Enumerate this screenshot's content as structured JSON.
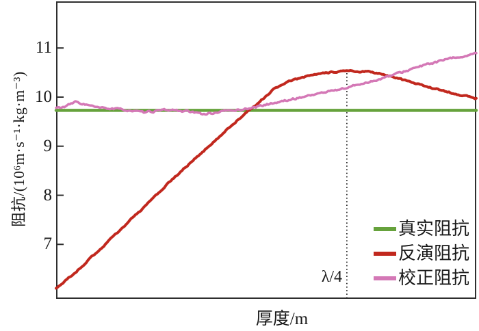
{
  "figure": {
    "background": "#ffffff",
    "axis_color": "#2e2e2e",
    "text_color": "#1a1a1a"
  },
  "chart_data": {
    "type": "line",
    "title": "",
    "xlabel": "厚度/m",
    "ylabel": "阻抗/(10⁶m·s⁻¹·kg·m⁻³)",
    "yticks": [
      7,
      8,
      9,
      10,
      11
    ],
    "ylim": [
      5.89,
      11.95
    ],
    "xlim_normalized": [
      0,
      1
    ],
    "x_tick_labels_visible": false,
    "grid": false,
    "legend_position": "bottom-right",
    "annotation": {
      "label": "λ/4",
      "x": 0.692,
      "type": "vertical-dotted-line",
      "line_color": "#111111",
      "y_top_value": 10.56
    },
    "series": [
      {
        "name": "真实阻抗",
        "color": "#66a23c",
        "width": 4.5,
        "noise": 0,
        "points": [
          [
            0,
            9.73
          ],
          [
            1,
            9.73
          ]
        ]
      },
      {
        "name": "反演阻抗",
        "color": "#c1281e",
        "width": 4,
        "noise": 0.012,
        "points": [
          [
            0,
            6.1
          ],
          [
            0.05,
            6.46
          ],
          [
            0.108,
            6.93
          ],
          [
            0.16,
            7.36
          ],
          [
            0.217,
            7.82
          ],
          [
            0.27,
            8.27
          ],
          [
            0.326,
            8.71
          ],
          [
            0.38,
            9.13
          ],
          [
            0.434,
            9.55
          ],
          [
            0.47,
            9.8
          ],
          [
            0.518,
            10.16
          ],
          [
            0.55,
            10.3
          ],
          [
            0.583,
            10.4
          ],
          [
            0.62,
            10.46
          ],
          [
            0.66,
            10.51
          ],
          [
            0.7,
            10.53
          ],
          [
            0.74,
            10.52
          ],
          [
            0.77,
            10.48
          ],
          [
            0.795,
            10.43
          ],
          [
            0.845,
            10.3
          ],
          [
            0.89,
            10.2
          ],
          [
            0.927,
            10.12
          ],
          [
            0.96,
            10.05
          ],
          [
            1,
            9.97
          ]
        ]
      },
      {
        "name": "校正阻抗",
        "color": "#d478b6",
        "width": 3.5,
        "noise": 0.016,
        "points": [
          [
            0,
            9.78
          ],
          [
            0.02,
            9.8
          ],
          [
            0.046,
            9.9
          ],
          [
            0.07,
            9.85
          ],
          [
            0.1,
            9.78
          ],
          [
            0.14,
            9.76
          ],
          [
            0.175,
            9.73
          ],
          [
            0.209,
            9.68
          ],
          [
            0.24,
            9.72
          ],
          [
            0.274,
            9.74
          ],
          [
            0.31,
            9.71
          ],
          [
            0.345,
            9.66
          ],
          [
            0.372,
            9.67
          ],
          [
            0.4,
            9.72
          ],
          [
            0.437,
            9.74
          ],
          [
            0.47,
            9.79
          ],
          [
            0.518,
            9.88
          ],
          [
            0.56,
            9.95
          ],
          [
            0.6,
            10.03
          ],
          [
            0.64,
            10.1
          ],
          [
            0.692,
            10.19
          ],
          [
            0.73,
            10.28
          ],
          [
            0.755,
            10.33
          ],
          [
            0.795,
            10.43
          ],
          [
            0.845,
            10.57
          ],
          [
            0.89,
            10.68
          ],
          [
            0.927,
            10.76
          ],
          [
            0.96,
            10.82
          ],
          [
            1,
            10.88
          ]
        ]
      }
    ]
  }
}
